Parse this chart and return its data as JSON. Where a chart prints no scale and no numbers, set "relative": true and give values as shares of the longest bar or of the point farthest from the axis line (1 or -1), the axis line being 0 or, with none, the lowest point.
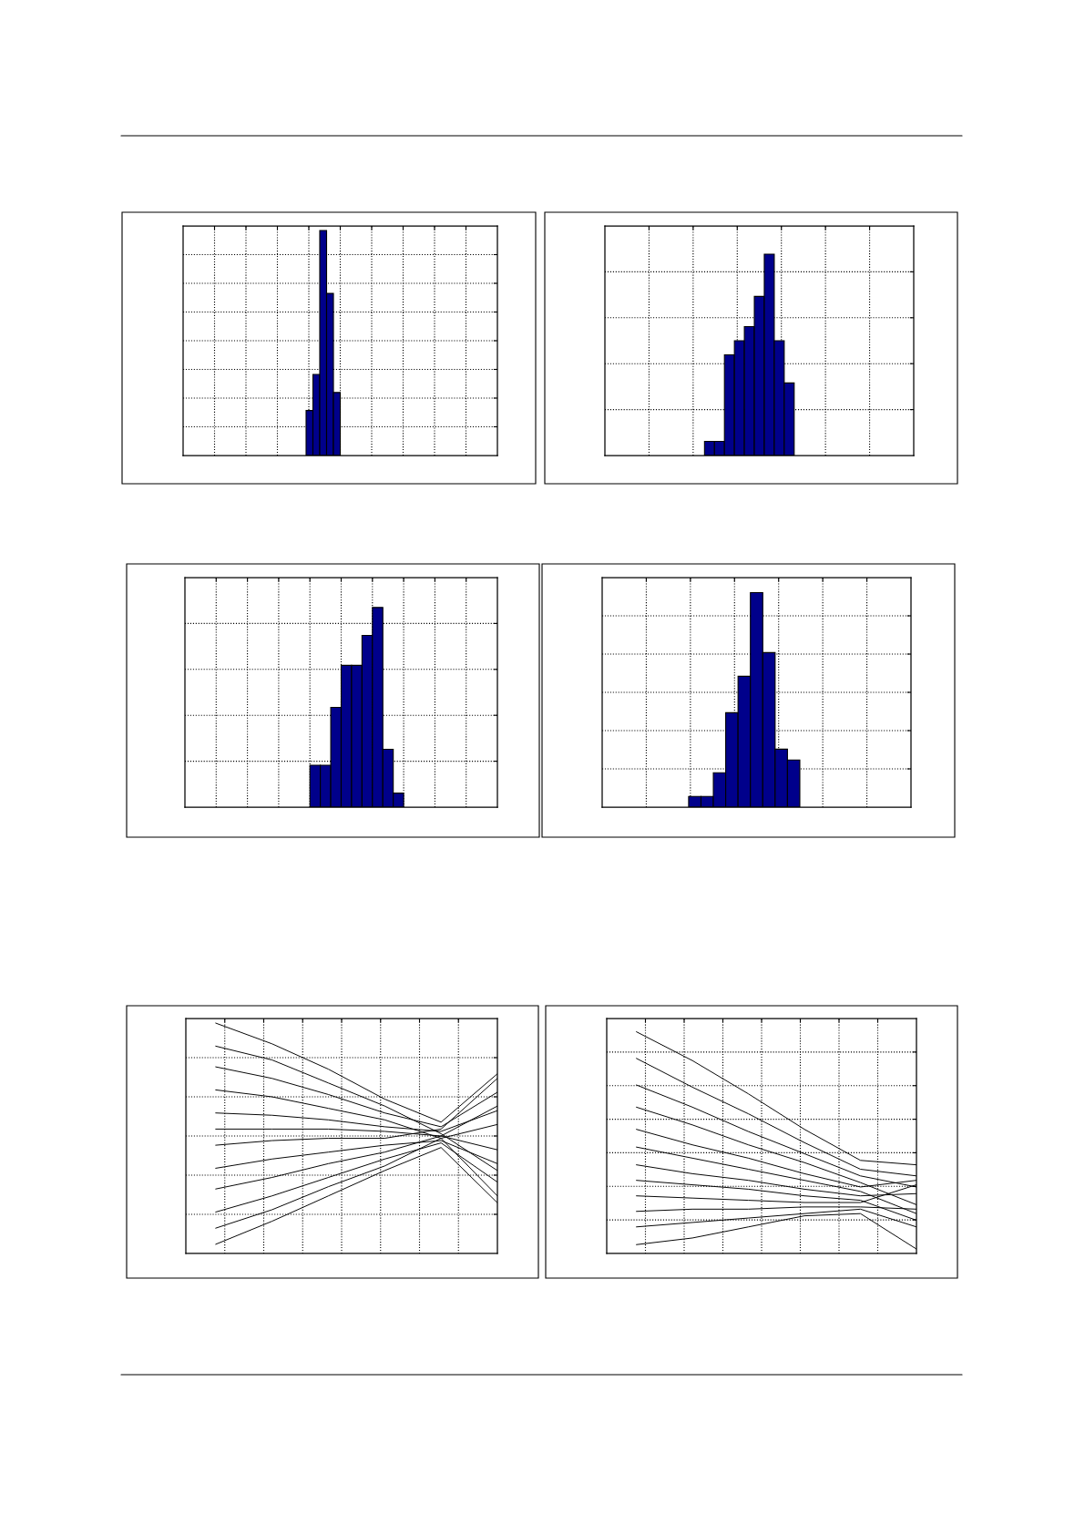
{
  "chart_data": [
    {
      "type": "bar",
      "relative": true,
      "grid": true,
      "tick_labels": false,
      "color": "#00008b",
      "categories": [
        null,
        null,
        null,
        null,
        null
      ],
      "values": [
        0.2,
        0.36,
        1,
        0.72,
        0.28
      ]
    },
    {
      "type": "bar",
      "relative": true,
      "grid": true,
      "tick_labels": false,
      "color": "#00008b",
      "categories": [
        null,
        null,
        null,
        null,
        null,
        null,
        null,
        null,
        null
      ],
      "values": [
        0.07,
        0.07,
        0.5,
        0.57,
        0.64,
        0.79,
        1,
        0.57,
        0.36
      ]
    },
    {
      "type": "bar",
      "relative": true,
      "grid": true,
      "tick_labels": false,
      "color": "#00008b",
      "categories": [
        null,
        null,
        null,
        null,
        null,
        null,
        null,
        null,
        null
      ],
      "values": [
        0.21,
        0.21,
        0.5,
        0.71,
        0.71,
        0.86,
        1,
        0.29,
        0.07
      ]
    },
    {
      "type": "bar",
      "relative": true,
      "grid": true,
      "tick_labels": false,
      "color": "#00008b",
      "categories": [
        null,
        null,
        null,
        null,
        null,
        null,
        null,
        null,
        null
      ],
      "values": [
        0.05,
        0.05,
        0.16,
        0.44,
        0.61,
        1,
        0.72,
        0.27,
        0.22
      ]
    },
    {
      "type": "line",
      "relative": true,
      "grid": true,
      "tick_labels": false,
      "categories": [
        null,
        null,
        null,
        null,
        null,
        null
      ],
      "series": [
        {
          "color": "#000000",
          "values": [
            1.0,
            0.91,
            0.8,
            0.67,
            0.57,
            0.78
          ]
        },
        {
          "color": "#000000",
          "values": [
            0.9,
            0.84,
            0.74,
            0.64,
            0.52,
            0.36
          ]
        },
        {
          "color": "#000000",
          "values": [
            0.81,
            0.76,
            0.69,
            0.61,
            0.55,
            0.7
          ]
        },
        {
          "color": "#000000",
          "values": [
            0.71,
            0.68,
            0.63,
            0.58,
            0.5,
            0.25
          ]
        },
        {
          "color": "#000000",
          "values": [
            0.61,
            0.6,
            0.58,
            0.55,
            0.53,
            0.62
          ]
        },
        {
          "color": "#000000",
          "values": [
            0.54,
            0.54,
            0.54,
            0.53,
            0.51,
            0.45
          ]
        },
        {
          "color": "#000000",
          "values": [
            0.47,
            0.49,
            0.5,
            0.5,
            0.54,
            0.76
          ]
        },
        {
          "color": "#000000",
          "values": [
            0.37,
            0.41,
            0.44,
            0.47,
            0.49,
            0.39
          ]
        },
        {
          "color": "#000000",
          "values": [
            0.28,
            0.33,
            0.39,
            0.44,
            0.51,
            0.64
          ]
        },
        {
          "color": "#000000",
          "values": [
            0.18,
            0.25,
            0.33,
            0.41,
            0.48,
            0.31
          ]
        },
        {
          "color": "#000000",
          "values": [
            0.11,
            0.19,
            0.29,
            0.38,
            0.5,
            0.56
          ]
        },
        {
          "color": "#000000",
          "values": [
            0.04,
            0.14,
            0.25,
            0.36,
            0.46,
            0.22
          ]
        }
      ]
    },
    {
      "type": "line",
      "relative": true,
      "grid": true,
      "tick_labels": false,
      "categories": [
        null,
        null,
        null,
        null,
        null,
        null
      ],
      "series": [
        {
          "color": "#000000",
          "values": [
            1.0,
            0.87,
            0.72,
            0.56,
            0.42,
            0.4
          ]
        },
        {
          "color": "#000000",
          "values": [
            0.88,
            0.75,
            0.63,
            0.5,
            0.38,
            0.35
          ]
        },
        {
          "color": "#000000",
          "values": [
            0.76,
            0.66,
            0.55,
            0.45,
            0.35,
            0.3
          ]
        },
        {
          "color": "#000000",
          "values": [
            0.66,
            0.58,
            0.49,
            0.41,
            0.32,
            0.22
          ]
        },
        {
          "color": "#000000",
          "values": [
            0.56,
            0.49,
            0.43,
            0.36,
            0.3,
            0.33
          ]
        },
        {
          "color": "#000000",
          "values": [
            0.48,
            0.43,
            0.38,
            0.33,
            0.28,
            0.18
          ]
        },
        {
          "color": "#000000",
          "values": [
            0.4,
            0.36,
            0.33,
            0.29,
            0.26,
            0.27
          ]
        },
        {
          "color": "#000000",
          "values": [
            0.33,
            0.31,
            0.29,
            0.26,
            0.24,
            0.15
          ]
        },
        {
          "color": "#000000",
          "values": [
            0.26,
            0.25,
            0.24,
            0.23,
            0.23,
            0.31
          ]
        },
        {
          "color": "#000000",
          "values": [
            0.19,
            0.2,
            0.2,
            0.21,
            0.21,
            0.2
          ]
        },
        {
          "color": "#000000",
          "values": [
            0.12,
            0.14,
            0.16,
            0.18,
            0.2,
            0.12
          ]
        },
        {
          "color": "#000000",
          "values": [
            0.04,
            0.07,
            0.12,
            0.17,
            0.18,
            0.02
          ]
        }
      ]
    }
  ]
}
